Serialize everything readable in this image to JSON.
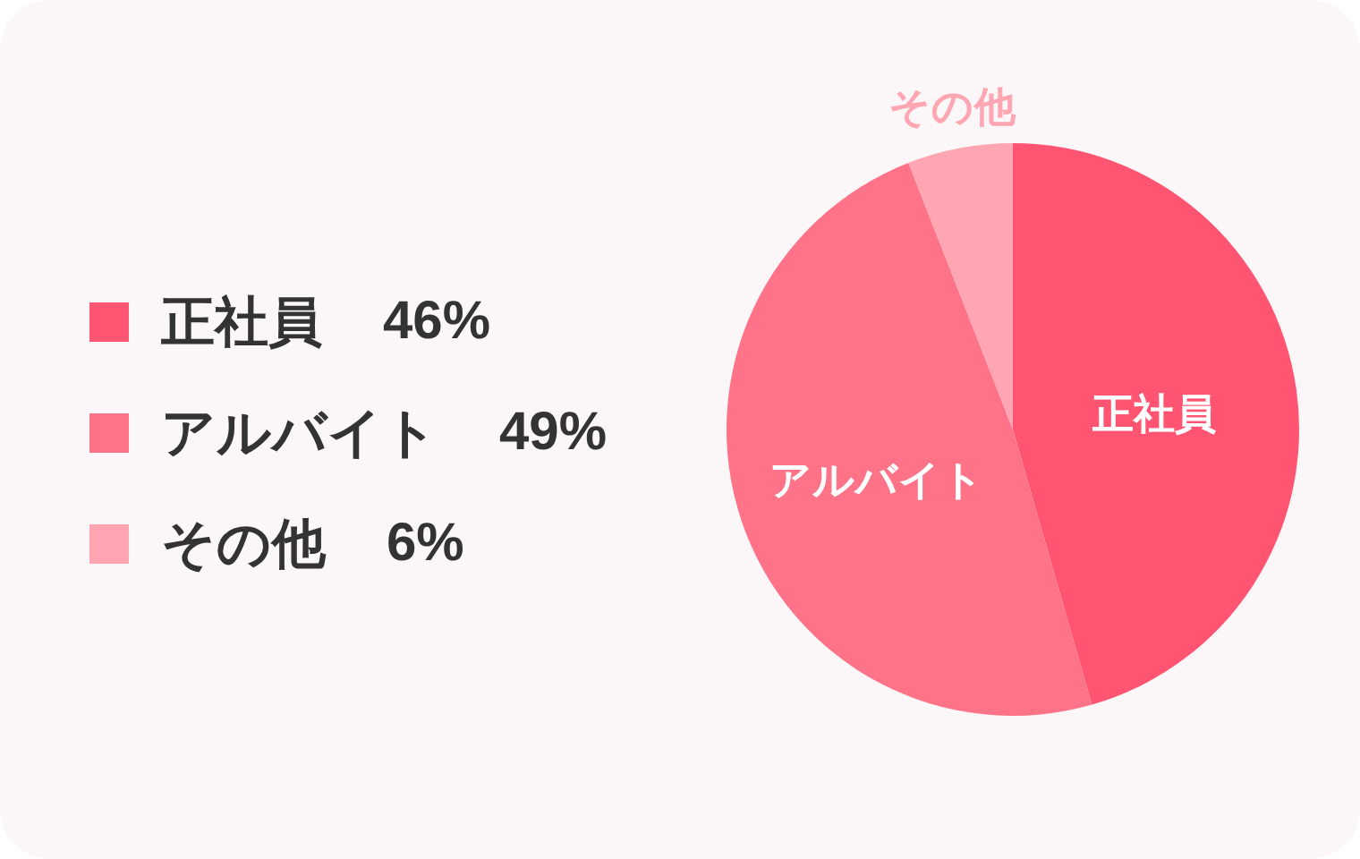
{
  "chart_data": {
    "type": "pie",
    "categories": [
      "正社員",
      "アルバイト",
      "その他"
    ],
    "values": [
      46,
      49,
      6
    ],
    "colors": [
      "#ff5572",
      "#ff7388",
      "#ffa6b2"
    ],
    "value_labels": [
      "46%",
      "49%",
      "6%"
    ],
    "legend": "left"
  }
}
